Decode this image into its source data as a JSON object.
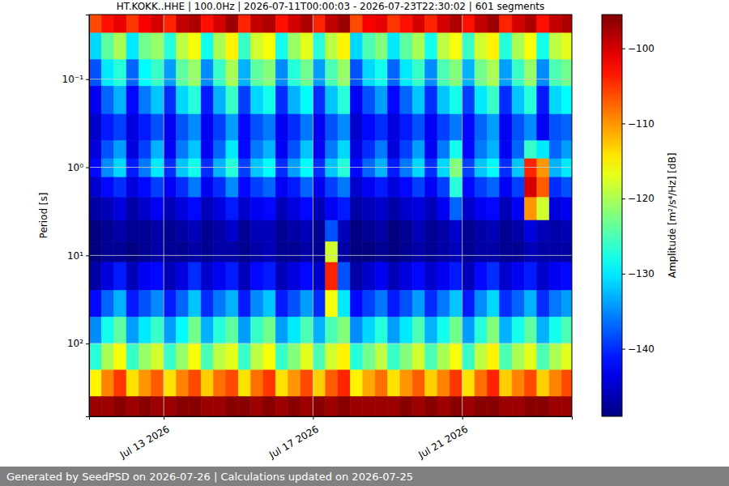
{
  "chart_data": {
    "type": "heatmap",
    "title": "HT.KOKK..HHE | 100.0Hz | 2026-07-11T00:00:03 - 2026-07-23T22:30:02 | 601 segments",
    "y_label": "Period [s]",
    "footer": "Generated by SeedPSD on 2026-07-26 | Calculations updated on 2026-07-25",
    "log": "y",
    "grid": true,
    "xlim": [
      "2026-07-11T00:00:03",
      "2026-07-23T22:30:02"
    ],
    "xticks": [
      {
        "value": "2026-07-13T00:00:00",
        "label": "Jul 13 2026"
      },
      {
        "value": "2026-07-17T00:00:00",
        "label": "Jul 17 2026"
      },
      {
        "value": "2026-07-21T00:00:00",
        "label": "Jul 21 2026"
      }
    ],
    "ylim": [
      0.0185,
      670
    ],
    "yticks": [
      {
        "value": 0.1,
        "label": "10⁻¹"
      },
      {
        "value": 1,
        "label": "10⁰"
      },
      {
        "value": 10,
        "label": "10¹"
      },
      {
        "value": 100,
        "label": "10²"
      }
    ],
    "colorbar": {
      "label": "Amplitude [m²/s⁴/Hz] [dB]",
      "range": [
        -149,
        -95.5
      ],
      "ticks": [
        -100,
        -110,
        -120,
        -130,
        -140
      ]
    },
    "x_edges": [
      "2026-07-11T00:00:03",
      "2026-07-11T08:00:00",
      "2026-07-11T16:00:00",
      "2026-07-12T00:00:00",
      "2026-07-12T08:00:00",
      "2026-07-12T16:00:00",
      "2026-07-13T00:00:00",
      "2026-07-13T08:00:00",
      "2026-07-13T16:00:00",
      "2026-07-14T00:00:00",
      "2026-07-14T08:00:00",
      "2026-07-14T16:00:00",
      "2026-07-15T00:00:00",
      "2026-07-15T08:00:00",
      "2026-07-15T16:00:00",
      "2026-07-16T00:00:00",
      "2026-07-16T08:00:00",
      "2026-07-16T16:00:00",
      "2026-07-17T00:00:00",
      "2026-07-17T08:00:00",
      "2026-07-17T16:00:00",
      "2026-07-18T00:00:00",
      "2026-07-18T08:00:00",
      "2026-07-18T16:00:00",
      "2026-07-19T00:00:00",
      "2026-07-19T08:00:00",
      "2026-07-19T16:00:00",
      "2026-07-20T00:00:00",
      "2026-07-20T08:00:00",
      "2026-07-20T16:00:00",
      "2026-07-21T00:00:00",
      "2026-07-21T08:00:00",
      "2026-07-21T16:00:00",
      "2026-07-22T00:00:00",
      "2026-07-22T08:00:00",
      "2026-07-22T16:00:00",
      "2026-07-23T00:00:00",
      "2026-07-23T08:00:00",
      "2026-07-23T16:00:00",
      "2026-07-23T22:30:02"
    ],
    "y_edges": [
      0.0185,
      0.03,
      0.06,
      0.12,
      0.25,
      0.5,
      0.8,
      1.3,
      2.2,
      4,
      7,
      12,
      25,
      50,
      100,
      200,
      400,
      670
    ],
    "values": [
      [
        -106,
        -103,
        -101,
        -105,
        -102,
        -100,
        -104,
        -99,
        -98,
        -103,
        -100,
        -97,
        -104,
        -99,
        -98,
        -103,
        -100,
        -98,
        -104,
        -99,
        -97,
        -106,
        -102,
        -101,
        -105,
        -103,
        -100,
        -104,
        -100,
        -98,
        -103,
        -99,
        -97,
        -104,
        -100,
        -98,
        -103,
        -99,
        -98
      ],
      [
        -131,
        -124,
        -120,
        -130,
        -123,
        -121,
        -127,
        -119,
        -116,
        -128,
        -120,
        -115,
        -126,
        -118,
        -116,
        -128,
        -121,
        -117,
        -127,
        -119,
        -115,
        -131,
        -125,
        -122,
        -130,
        -124,
        -120,
        -128,
        -119,
        -116,
        -126,
        -118,
        -115,
        -127,
        -120,
        -116,
        -128,
        -119,
        -117
      ],
      [
        -138,
        -130,
        -127,
        -137,
        -129,
        -126,
        -134,
        -124,
        -121,
        -135,
        -126,
        -120,
        -133,
        -124,
        -122,
        -135,
        -127,
        -123,
        -134,
        -125,
        -121,
        -138,
        -131,
        -128,
        -137,
        -130,
        -126,
        -135,
        -125,
        -122,
        -133,
        -123,
        -120,
        -134,
        -126,
        -121,
        -135,
        -125,
        -123
      ],
      [
        -143,
        -137,
        -133,
        -142,
        -136,
        -132,
        -140,
        -131,
        -127,
        -141,
        -133,
        -126,
        -139,
        -131,
        -128,
        -140,
        -133,
        -129,
        -140,
        -132,
        -127,
        -143,
        -138,
        -134,
        -142,
        -137,
        -132,
        -140,
        -132,
        -128,
        -139,
        -130,
        -126,
        -140,
        -132,
        -127,
        -141,
        -131,
        -129
      ],
      [
        -145,
        -141,
        -139,
        -144,
        -141,
        -138,
        -143,
        -138,
        -135,
        -143,
        -139,
        -134,
        -142,
        -138,
        -136,
        -143,
        -140,
        -136,
        -143,
        -138,
        -135,
        -145,
        -142,
        -140,
        -144,
        -141,
        -138,
        -143,
        -139,
        -136,
        -142,
        -137,
        -134,
        -143,
        -138,
        -135,
        -143,
        -138,
        -137
      ],
      [
        -144,
        -138,
        -134,
        -144,
        -139,
        -133,
        -143,
        -136,
        -132,
        -143,
        -137,
        -130,
        -142,
        -136,
        -133,
        -143,
        -138,
        -132,
        -143,
        -136,
        -131,
        -144,
        -140,
        -136,
        -144,
        -139,
        -134,
        -143,
        -136,
        -128,
        -142,
        -136,
        -133,
        -143,
        -137,
        -126,
        -130,
        -137,
        -134
      ],
      [
        -142,
        -135,
        -131,
        -141,
        -136,
        -130,
        -140,
        -132,
        -128,
        -140,
        -133,
        -127,
        -139,
        -132,
        -129,
        -140,
        -134,
        -129,
        -140,
        -132,
        -127,
        -142,
        -137,
        -133,
        -141,
        -136,
        -131,
        -140,
        -131,
        -122,
        -139,
        -132,
        -129,
        -140,
        -132,
        -104,
        -110,
        -133,
        -130
      ],
      [
        -145,
        -142,
        -140,
        -144,
        -142,
        -139,
        -143,
        -140,
        -136,
        -143,
        -140,
        -135,
        -142,
        -139,
        -137,
        -143,
        -141,
        -137,
        -143,
        -139,
        -136,
        -145,
        -143,
        -141,
        -144,
        -142,
        -139,
        -143,
        -139,
        -127,
        -142,
        -139,
        -137,
        -143,
        -139,
        -100,
        -107,
        -140,
        -138
      ],
      [
        -147,
        -146,
        -144,
        -147,
        -145,
        -143,
        -146,
        -144,
        -142,
        -146,
        -144,
        -141,
        -145,
        -143,
        -142,
        -146,
        -144,
        -142,
        -146,
        -143,
        -141,
        -147,
        -146,
        -145,
        -147,
        -145,
        -144,
        -146,
        -143,
        -137,
        -145,
        -143,
        -142,
        -146,
        -143,
        -110,
        -118,
        -144,
        -143
      ],
      [
        -149,
        -148,
        -147,
        -148,
        -148,
        -147,
        -148,
        -147,
        -146,
        -148,
        -147,
        -145,
        -148,
        -146,
        -146,
        -148,
        -147,
        -146,
        -148,
        -138,
        -146,
        -149,
        -148,
        -147,
        -149,
        -148,
        -146,
        -148,
        -147,
        -145,
        -148,
        -147,
        -146,
        -148,
        -147,
        -144,
        -146,
        -147,
        -146
      ],
      [
        -149,
        -148,
        -148,
        -149,
        -148,
        -147,
        -148,
        -148,
        -147,
        -148,
        -147,
        -147,
        -148,
        -147,
        -146,
        -148,
        -148,
        -147,
        -148,
        -118,
        -147,
        -149,
        -149,
        -148,
        -149,
        -148,
        -147,
        -148,
        -147,
        -146,
        -148,
        -147,
        -147,
        -148,
        -148,
        -146,
        -147,
        -147,
        -147
      ],
      [
        -147,
        -144,
        -141,
        -146,
        -143,
        -142,
        -146,
        -144,
        -140,
        -145,
        -143,
        -141,
        -146,
        -142,
        -141,
        -146,
        -144,
        -142,
        -145,
        -104,
        -138,
        -147,
        -145,
        -143,
        -146,
        -144,
        -142,
        -145,
        -143,
        -141,
        -146,
        -142,
        -140,
        -145,
        -143,
        -141,
        -145,
        -143,
        -142
      ],
      [
        -142,
        -137,
        -133,
        -141,
        -138,
        -135,
        -141,
        -137,
        -132,
        -140,
        -136,
        -133,
        -141,
        -135,
        -132,
        -141,
        -138,
        -134,
        -140,
        -116,
        -130,
        -142,
        -139,
        -136,
        -141,
        -138,
        -134,
        -140,
        -136,
        -132,
        -141,
        -135,
        -131,
        -140,
        -137,
        -133,
        -140,
        -136,
        -134
      ],
      [
        -135,
        -128,
        -124,
        -134,
        -130,
        -126,
        -134,
        -129,
        -123,
        -133,
        -127,
        -124,
        -134,
        -126,
        -123,
        -134,
        -130,
        -125,
        -133,
        -125,
        -122,
        -135,
        -131,
        -127,
        -134,
        -130,
        -125,
        -133,
        -128,
        -123,
        -134,
        -127,
        -122,
        -133,
        -128,
        -124,
        -133,
        -128,
        -125
      ],
      [
        -127,
        -120,
        -116,
        -126,
        -121,
        -118,
        -126,
        -121,
        -116,
        -125,
        -119,
        -117,
        -126,
        -119,
        -116,
        -126,
        -122,
        -117,
        -125,
        -118,
        -115,
        -127,
        -123,
        -119,
        -126,
        -122,
        -118,
        -125,
        -120,
        -116,
        -126,
        -119,
        -115,
        -125,
        -120,
        -117,
        -125,
        -120,
        -117
      ],
      [
        -115,
        -109,
        -105,
        -114,
        -110,
        -107,
        -114,
        -109,
        -106,
        -113,
        -108,
        -106,
        -114,
        -108,
        -105,
        -114,
        -110,
        -106,
        -113,
        -107,
        -104,
        -115,
        -111,
        -108,
        -114,
        -110,
        -107,
        -113,
        -109,
        -105,
        -114,
        -108,
        -104,
        -113,
        -109,
        -106,
        -113,
        -109,
        -106
      ],
      [
        -97,
        -97,
        -96,
        -97,
        -96,
        -97,
        -97,
        -96,
        -96,
        -97,
        -97,
        -96,
        -96,
        -97,
        -96,
        -97,
        -96,
        -97,
        -96,
        -97,
        -96,
        -97,
        -97,
        -97,
        -97,
        -96,
        -97,
        -96,
        -97,
        -96,
        -97,
        -96,
        -96,
        -97,
        -97,
        -96,
        -96,
        -97,
        -97
      ]
    ]
  }
}
